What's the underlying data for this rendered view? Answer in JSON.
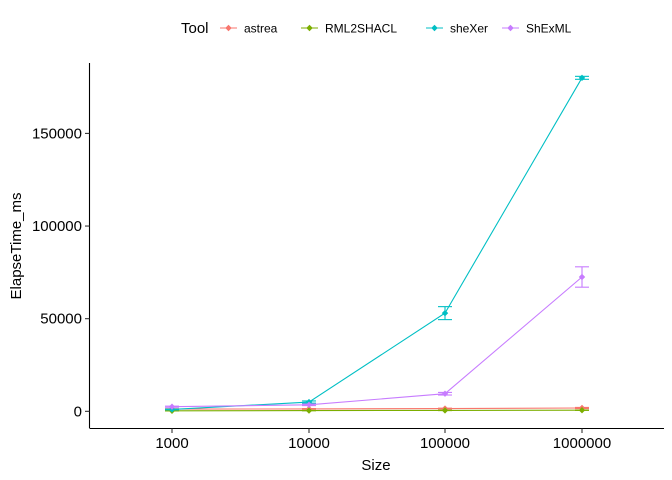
{
  "chart_data": {
    "type": "line",
    "title": "",
    "xlabel": "Size",
    "ylabel": "ElapseTime_ms",
    "x": [
      "1000",
      "10000",
      "100000",
      "1000000"
    ],
    "ylim": [
      -9000,
      188000
    ],
    "yticks": [
      0,
      50000,
      100000,
      150000
    ],
    "ytick_labels": [
      "0",
      "50000",
      "100000",
      "150000"
    ],
    "grid": false,
    "legend_title": "Tool",
    "legend_position": "top",
    "series": [
      {
        "name": "astrea",
        "color": "#F8766D",
        "values": [
          1200,
          1300,
          1500,
          1800
        ],
        "err": [
          200,
          200,
          200,
          300
        ]
      },
      {
        "name": "RML2SHACL",
        "color": "#7CAE00",
        "values": [
          300,
          400,
          500,
          600
        ],
        "err": [
          100,
          100,
          100,
          100
        ]
      },
      {
        "name": "sheXer",
        "color": "#00BFC4",
        "values": [
          1000,
          5000,
          53000,
          180000
        ],
        "err": [
          200,
          600,
          3500,
          800
        ]
      },
      {
        "name": "ShExML",
        "color": "#C77CFF",
        "values": [
          2500,
          3500,
          9500,
          72500
        ],
        "err": [
          300,
          400,
          700,
          5500
        ]
      }
    ]
  }
}
